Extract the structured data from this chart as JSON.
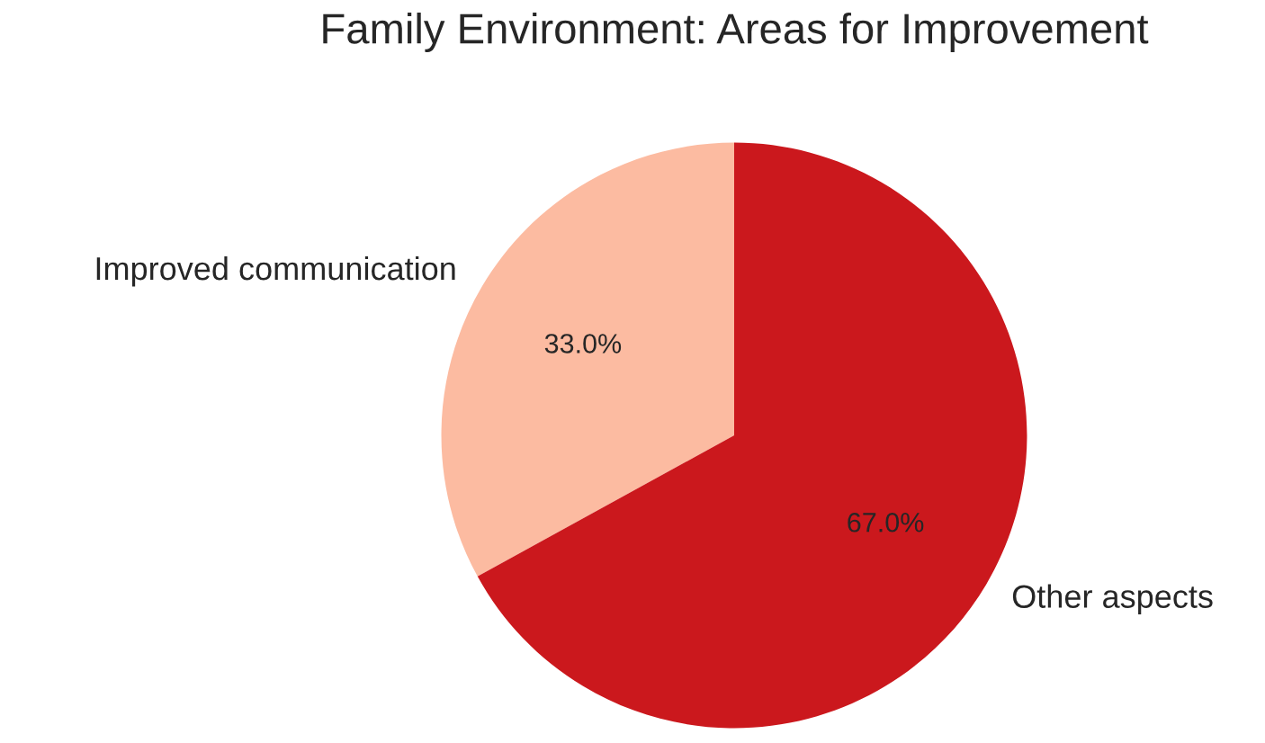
{
  "chart_data": {
    "type": "pie",
    "title": "Family Environment: Areas for Improvement",
    "categories": [
      "Improved communication",
      "Other aspects"
    ],
    "values": [
      33.0,
      67.0
    ],
    "colors": [
      "#fcbba1",
      "#cb181d"
    ],
    "value_labels": [
      "33.0%",
      "67.0%"
    ]
  }
}
